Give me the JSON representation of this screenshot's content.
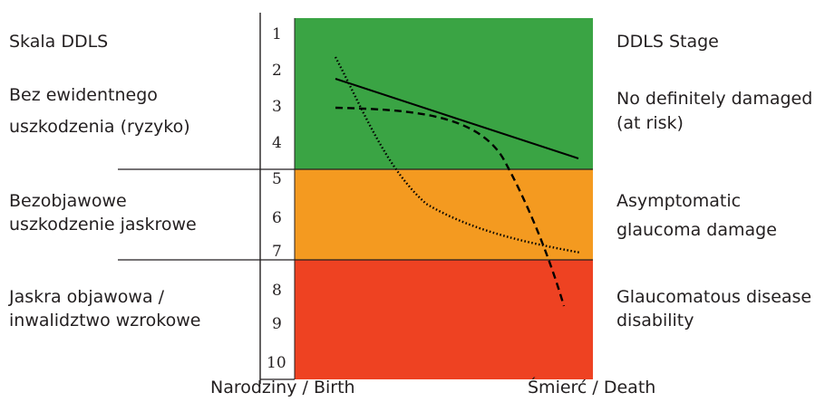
{
  "left_labels": {
    "title": "Skala DDLS",
    "zone1": [
      "Bez ewidentnego",
      "uszkodzenia (ryzyko)"
    ],
    "zone2": [
      "Bezobjawowe",
      "uszkodzenie jaskrowe"
    ],
    "zone3": [
      "Jaskra objawowa /",
      "inwalidztwo wzrokowe"
    ]
  },
  "right_labels": {
    "title": "DDLS Stage",
    "zone1": [
      "No definitely damaged",
      "(at risk)"
    ],
    "zone2": [
      "Asymptomatic",
      "glaucoma damage"
    ],
    "zone3": [
      "Glaucomatous disease",
      "disability"
    ]
  },
  "stage_numbers": [
    "1",
    "2",
    "3",
    "4",
    "5",
    "6",
    "7",
    "8",
    "9",
    "10"
  ],
  "x_axis": {
    "start_label": "Narodziny / Birth",
    "end_label": "Śmierć / Death"
  },
  "colors": {
    "zone_at_risk": "#3aa444",
    "zone_asymptomatic": "#f49a20",
    "zone_disability": "#ee4222",
    "curve": "#000000"
  }
}
